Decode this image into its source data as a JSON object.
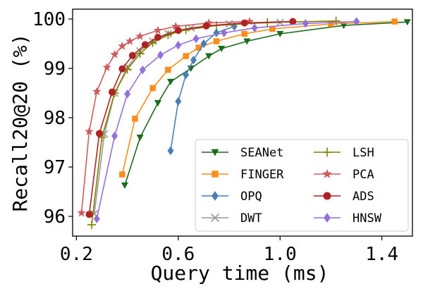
{
  "chart_data": {
    "type": "line",
    "title": "",
    "xlabel": "Query time (ms)",
    "ylabel": "Recall20@20 (%)",
    "xlim": [
      0.185,
      1.52
    ],
    "ylim": [
      95.6,
      100.2
    ],
    "xticks": [
      0.2,
      0.6,
      1.0,
      1.4
    ],
    "xtick_labels": [
      "0.2",
      "0.6",
      "1.0",
      "1.4"
    ],
    "yticks": [
      96,
      97,
      98,
      99,
      100
    ],
    "ytick_labels": [
      "96",
      "97",
      "98",
      "99",
      "100"
    ],
    "legend_position": "lower-right",
    "series": [
      {
        "name": "SEANet",
        "color": "#1a6b1a",
        "marker": "triangle-down",
        "x": [
          0.39,
          0.45,
          0.52,
          0.57,
          0.65,
          0.72,
          0.77,
          0.87,
          1.0,
          1.25,
          1.5
        ],
        "y": [
          96.63,
          97.6,
          98.3,
          98.73,
          99.0,
          99.25,
          99.4,
          99.55,
          99.7,
          99.87,
          99.94
        ]
      },
      {
        "name": "FINGER",
        "color": "#ff8c1a",
        "marker": "square",
        "x": [
          0.38,
          0.43,
          0.5,
          0.56,
          0.63,
          0.68,
          0.75,
          0.86,
          0.97,
          1.2,
          1.45
        ],
        "y": [
          96.85,
          97.98,
          98.6,
          98.97,
          99.25,
          99.42,
          99.55,
          99.7,
          99.8,
          99.9,
          99.95
        ]
      },
      {
        "name": "OPQ",
        "color": "#4a7fb5",
        "marker": "diamond",
        "x": [
          0.57,
          0.6,
          0.63,
          0.66,
          0.7,
          0.75,
          0.82
        ],
        "y": [
          97.33,
          98.33,
          98.87,
          99.17,
          99.5,
          99.72,
          99.85
        ]
      },
      {
        "name": "DWT",
        "color": "#999999",
        "marker": "x",
        "x": [
          0.27,
          0.31,
          0.35,
          0.4,
          0.45,
          0.5,
          0.56,
          0.65,
          0.8,
          1.0
        ],
        "y": [
          96.05,
          97.67,
          98.5,
          99.02,
          99.35,
          99.55,
          99.7,
          99.82,
          99.9,
          99.93
        ]
      },
      {
        "name": "LSH",
        "color": "#808000",
        "marker": "plus",
        "x": [
          0.26,
          0.3,
          0.35,
          0.4,
          0.45,
          0.5,
          0.56,
          0.63,
          0.75,
          0.95,
          1.22
        ],
        "y": [
          95.83,
          97.6,
          98.5,
          98.98,
          99.3,
          99.52,
          99.68,
          99.78,
          99.87,
          99.93,
          99.96
        ]
      },
      {
        "name": "PCA",
        "color": "#cd5c5c",
        "marker": "star",
        "x": [
          0.22,
          0.25,
          0.28,
          0.32,
          0.35,
          0.38,
          0.41,
          0.45,
          0.52,
          0.59,
          0.72,
          0.88
        ],
        "y": [
          96.07,
          97.72,
          98.53,
          99.02,
          99.28,
          99.45,
          99.55,
          99.65,
          99.77,
          99.85,
          99.92,
          99.95
        ]
      },
      {
        "name": "ADS",
        "color": "#b22222",
        "marker": "circle",
        "x": [
          0.25,
          0.29,
          0.34,
          0.38,
          0.42,
          0.47,
          0.52,
          0.6,
          0.71,
          0.86,
          1.05
        ],
        "y": [
          96.04,
          97.68,
          98.52,
          98.99,
          99.26,
          99.48,
          99.63,
          99.77,
          99.86,
          99.92,
          99.95
        ]
      },
      {
        "name": "HNSW",
        "color": "#9370db",
        "marker": "diamond",
        "x": [
          0.28,
          0.35,
          0.4,
          0.46,
          0.53,
          0.6,
          0.67,
          0.78,
          0.9,
          1.1,
          1.3
        ],
        "y": [
          95.95,
          97.63,
          98.48,
          98.97,
          99.27,
          99.47,
          99.6,
          99.72,
          99.82,
          99.91,
          99.95
        ]
      }
    ]
  }
}
